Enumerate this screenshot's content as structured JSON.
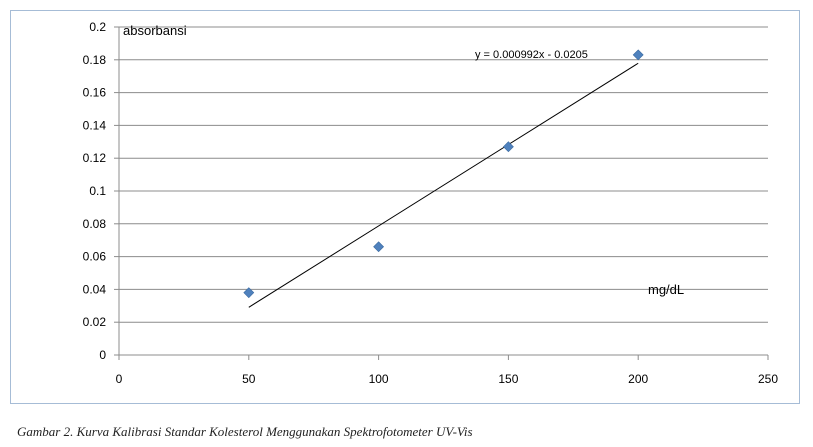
{
  "chart_data": {
    "type": "scatter",
    "ylabel": "absorbansi",
    "xlabel": "mg/dL",
    "xlim": [
      0,
      250
    ],
    "ylim": [
      0,
      0.2
    ],
    "x_ticks": [
      "0",
      "50",
      "100",
      "150",
      "200",
      "250"
    ],
    "y_ticks": [
      "0",
      "0.02",
      "0.04",
      "0.06",
      "0.08",
      "0.1",
      "0.12",
      "0.14",
      "0.16",
      "0.18",
      "0.2"
    ],
    "grid": "horizontal",
    "series": [
      {
        "x": [
          50,
          100,
          150,
          200
        ],
        "y": [
          0.038,
          0.066,
          0.127,
          0.183
        ],
        "marker": "diamond",
        "color": "#4f81bd"
      }
    ],
    "trendline": {
      "slope": 0.000992,
      "intercept": -0.0205,
      "x_range": [
        50,
        200
      ],
      "color": "#000000",
      "equation_label": "y = 0.000992x - 0.0205"
    }
  },
  "caption": "Gambar 2. Kurva Kalibrasi Standar Kolesterol Menggunakan Spektrofotometer UV-Vis"
}
